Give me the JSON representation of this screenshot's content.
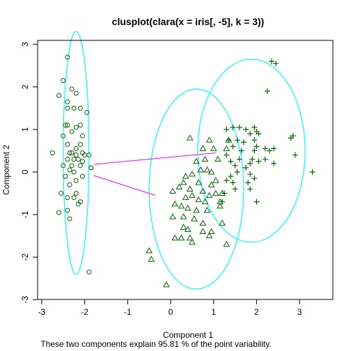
{
  "chart_data": {
    "type": "scatter",
    "title": "clusplot(clara(x = iris[, -5], k = 3))",
    "xlabel": "Component 1",
    "ylabel": "Component 2",
    "subtitle": "These two components explain 95.81 % of the point variability.",
    "xlim": [
      -3.0,
      3.5
    ],
    "ylim": [
      -3.0,
      3.1
    ],
    "xticks": [
      -3,
      -2,
      -1,
      0,
      1,
      2,
      3
    ],
    "yticks": [
      -3,
      -2,
      -1,
      0,
      1,
      2,
      3
    ],
    "colors": {
      "points": "#006400",
      "ellipses": "#00ffff",
      "lines": "#ff00ff",
      "axes": "#000000"
    },
    "clusters": [
      {
        "marker": "circle",
        "ellipse": {
          "center": [
            -2.2,
            0.45
          ],
          "rx": 0.3,
          "ry": 2.85
        },
        "points": [
          [
            -2.4,
            2.7
          ],
          [
            -2.5,
            2.15
          ],
          [
            -2.6,
            1.8
          ],
          [
            -2.3,
            1.95
          ],
          [
            -2.2,
            1.85
          ],
          [
            -2.4,
            1.65
          ],
          [
            -2.1,
            1.5
          ],
          [
            -2.25,
            1.5
          ],
          [
            -1.95,
            1.4
          ],
          [
            -2.4,
            1.5
          ],
          [
            -2.45,
            1.1
          ],
          [
            -2.4,
            1.1
          ],
          [
            -2.2,
            1.05
          ],
          [
            -2.1,
            1.1
          ],
          [
            -2.3,
            0.95
          ],
          [
            -2.5,
            0.85
          ],
          [
            -2.05,
            0.85
          ],
          [
            -2.4,
            0.65
          ],
          [
            -2.2,
            0.55
          ],
          [
            -2.3,
            0.45
          ],
          [
            -2.1,
            0.65
          ],
          [
            -2.75,
            0.45
          ],
          [
            -2.35,
            0.45
          ],
          [
            -2.2,
            0.4
          ],
          [
            -2.0,
            0.4
          ],
          [
            -1.9,
            0.4
          ],
          [
            -2.05,
            0.45
          ],
          [
            -2.25,
            0.3
          ],
          [
            -2.4,
            0.3
          ],
          [
            -2.15,
            0.3
          ],
          [
            -2.5,
            0.15
          ],
          [
            -2.3,
            0.15
          ],
          [
            -2.05,
            0.25
          ],
          [
            -2.35,
            0.05
          ],
          [
            -2.1,
            0.15
          ],
          [
            -2.25,
            0.0
          ],
          [
            -1.85,
            0.1
          ],
          [
            -2.45,
            -0.1
          ],
          [
            -2.05,
            -0.1
          ],
          [
            -2.2,
            -0.2
          ],
          [
            -2.35,
            -0.3
          ],
          [
            -2.55,
            -0.5
          ],
          [
            -2.2,
            -0.5
          ],
          [
            -2.4,
            -0.6
          ],
          [
            -2.25,
            -0.6
          ],
          [
            -2.1,
            -0.7
          ],
          [
            -2.15,
            -0.75
          ],
          [
            -2.6,
            -0.95
          ],
          [
            -2.4,
            -0.9
          ],
          [
            -2.35,
            -1.1
          ],
          [
            -1.9,
            -2.35
          ]
        ]
      },
      {
        "marker": "triangle",
        "ellipse": {
          "center": [
            0.6,
            -0.4
          ],
          "rx": 1.1,
          "ry": 2.35
        },
        "points": [
          [
            0.45,
            0.8
          ],
          [
            0.9,
            0.75
          ],
          [
            1.35,
            0.75
          ],
          [
            0.75,
            0.55
          ],
          [
            1.0,
            0.55
          ],
          [
            1.3,
            0.55
          ],
          [
            0.8,
            0.3
          ],
          [
            1.1,
            0.3
          ],
          [
            0.6,
            0.25
          ],
          [
            0.95,
            0.0
          ],
          [
            0.85,
            0.05
          ],
          [
            0.7,
            0.05
          ],
          [
            0.5,
            -0.05
          ],
          [
            0.35,
            -0.1
          ],
          [
            1.05,
            -0.2
          ],
          [
            0.3,
            -0.25
          ],
          [
            0.65,
            -0.25
          ],
          [
            0.95,
            -0.3
          ],
          [
            0.2,
            -0.35
          ],
          [
            0.45,
            -0.4
          ],
          [
            0.75,
            -0.45
          ],
          [
            0.05,
            -0.45
          ],
          [
            0.5,
            -0.55
          ],
          [
            0.9,
            -0.55
          ],
          [
            1.05,
            -0.5
          ],
          [
            1.2,
            -0.5
          ],
          [
            0.35,
            -0.6
          ],
          [
            0.65,
            -0.65
          ],
          [
            0.8,
            -0.7
          ],
          [
            1.15,
            -0.7
          ],
          [
            0.1,
            -0.75
          ],
          [
            0.25,
            -0.8
          ],
          [
            0.4,
            -0.85
          ],
          [
            0.6,
            -0.9
          ],
          [
            0.85,
            -0.9
          ],
          [
            1.15,
            -0.8
          ],
          [
            0.05,
            -1.05
          ],
          [
            0.3,
            -1.05
          ],
          [
            0.55,
            -1.1
          ],
          [
            0.75,
            -1.2
          ],
          [
            1.2,
            -1.2
          ],
          [
            0.3,
            -1.3
          ],
          [
            0.4,
            -1.35
          ],
          [
            0.75,
            -1.4
          ],
          [
            0.95,
            -1.4
          ],
          [
            0.1,
            -1.55
          ],
          [
            0.25,
            -1.55
          ],
          [
            0.45,
            -1.55
          ],
          [
            0.9,
            -1.5
          ],
          [
            0.5,
            -1.65
          ],
          [
            1.3,
            -1.7
          ],
          [
            -0.5,
            -1.85
          ],
          [
            -0.45,
            -2.05
          ],
          [
            -0.1,
            -2.65
          ]
        ]
      },
      {
        "marker": "plus",
        "ellipse": {
          "center": [
            1.88,
            0.5
          ],
          "rx": 1.25,
          "ry": 2.15
        },
        "points": [
          [
            2.35,
            2.6
          ],
          [
            2.45,
            2.55
          ],
          [
            2.25,
            1.9
          ],
          [
            1.3,
            1.0
          ],
          [
            1.35,
            0.75
          ],
          [
            1.45,
            1.05
          ],
          [
            1.6,
            1.05
          ],
          [
            1.75,
            1.0
          ],
          [
            1.95,
            1.05
          ],
          [
            1.85,
            0.9
          ],
          [
            2.0,
            0.95
          ],
          [
            2.05,
            0.9
          ],
          [
            1.7,
            0.7
          ],
          [
            1.55,
            0.75
          ],
          [
            1.95,
            0.75
          ],
          [
            1.45,
            0.6
          ],
          [
            2.0,
            0.6
          ],
          [
            2.2,
            0.55
          ],
          [
            2.4,
            0.55
          ],
          [
            1.65,
            0.5
          ],
          [
            1.95,
            0.5
          ],
          [
            2.3,
            0.5
          ],
          [
            2.8,
            0.8
          ],
          [
            2.85,
            0.85
          ],
          [
            1.3,
            0.4
          ],
          [
            1.6,
            0.3
          ],
          [
            1.9,
            0.3
          ],
          [
            2.2,
            0.3
          ],
          [
            1.4,
            0.25
          ],
          [
            2.9,
            0.4
          ],
          [
            2.05,
            0.25
          ],
          [
            1.85,
            0.2
          ],
          [
            2.4,
            0.2
          ],
          [
            1.5,
            0.15
          ],
          [
            1.75,
            0.1
          ],
          [
            1.55,
            0.0
          ],
          [
            1.85,
            -0.05
          ],
          [
            1.4,
            -0.1
          ],
          [
            3.3,
            0.0
          ],
          [
            1.3,
            -0.2
          ],
          [
            1.95,
            -0.15
          ],
          [
            1.45,
            -0.25
          ],
          [
            1.8,
            -0.25
          ],
          [
            1.25,
            -0.5
          ],
          [
            1.5,
            -0.4
          ],
          [
            1.85,
            -0.4
          ],
          [
            1.2,
            -0.7
          ],
          [
            2.0,
            -0.7
          ]
        ]
      }
    ],
    "connecting_lines": [
      {
        "from": [
          -1.78,
          0.18
        ],
        "to": [
          1.05,
          0.45
        ]
      },
      {
        "from": [
          -1.8,
          -0.08
        ],
        "to": [
          -0.35,
          -0.55
        ]
      }
    ]
  }
}
